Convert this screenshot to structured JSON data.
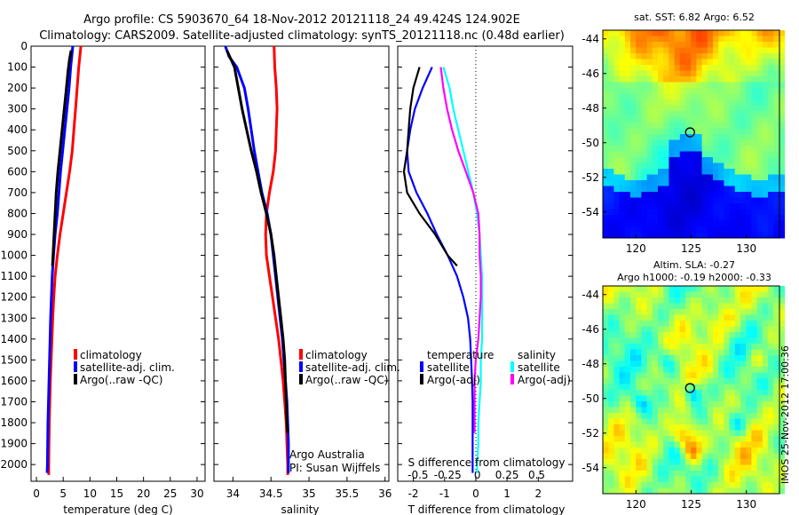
{
  "header": {
    "line1": "Argo profile: CS 5903670_64 18-Nov-2012 20121118_24 49.424S 124.902E",
    "line2": "Climatology: CARS2009. Satellite-adjusted climatology: synTS_20121118.nc (0.48d earlier)"
  },
  "colors": {
    "climatology": "#ff0000",
    "satellite": "#0000ff",
    "argo": "#000000",
    "salinity_satellite": "#00ffff",
    "salinity_argo": "#ff00ff"
  },
  "chart_data": [
    {
      "id": "temperature",
      "type": "line",
      "xlabel": "temperature (deg C)",
      "ylabel": "",
      "xlim": [
        -1,
        31.5
      ],
      "ylim": [
        2080,
        0
      ],
      "xticks": [
        0,
        5,
        10,
        15,
        20,
        25,
        30
      ],
      "yticks": [
        0,
        100,
        200,
        300,
        400,
        500,
        600,
        700,
        800,
        900,
        1000,
        1100,
        1200,
        1300,
        1400,
        1500,
        1600,
        1700,
        1800,
        1900,
        2000
      ],
      "legend": [
        "climatology",
        "satellite-adj. clim.",
        "Argo(..raw -QC)"
      ],
      "series": [
        {
          "name": "climatology",
          "color": "#ff0000",
          "points": [
            [
              8.3,
              0
            ],
            [
              8.1,
              50
            ],
            [
              7.9,
              100
            ],
            [
              7.6,
              200
            ],
            [
              7.3,
              300
            ],
            [
              7.0,
              400
            ],
            [
              6.7,
              500
            ],
            [
              6.2,
              600
            ],
            [
              5.6,
              700
            ],
            [
              5.0,
              800
            ],
            [
              4.4,
              900
            ],
            [
              3.9,
              1000
            ],
            [
              3.5,
              1100
            ],
            [
              3.25,
              1200
            ],
            [
              3.05,
              1300
            ],
            [
              2.9,
              1400
            ],
            [
              2.75,
              1500
            ],
            [
              2.6,
              1600
            ],
            [
              2.5,
              1700
            ],
            [
              2.4,
              1800
            ],
            [
              2.35,
              1900
            ],
            [
              2.3,
              2000
            ],
            [
              2.3,
              2050
            ]
          ]
        },
        {
          "name": "satellite-adj. clim.",
          "color": "#0000ff",
          "points": [
            [
              6.8,
              0
            ],
            [
              6.6,
              50
            ],
            [
              6.4,
              100
            ],
            [
              6.1,
              200
            ],
            [
              5.7,
              300
            ],
            [
              5.3,
              400
            ],
            [
              4.9,
              500
            ],
            [
              4.5,
              600
            ],
            [
              4.2,
              700
            ],
            [
              3.9,
              800
            ],
            [
              3.5,
              900
            ],
            [
              3.2,
              1000
            ],
            [
              2.95,
              1100
            ],
            [
              2.8,
              1200
            ],
            [
              2.65,
              1300
            ],
            [
              2.55,
              1400
            ],
            [
              2.45,
              1500
            ],
            [
              2.35,
              1600
            ],
            [
              2.25,
              1700
            ],
            [
              2.15,
              1800
            ],
            [
              2.1,
              1900
            ],
            [
              2.05,
              2000
            ],
            [
              2.0,
              2040
            ]
          ]
        },
        {
          "name": "Argo(..raw -QC)",
          "color": "#000000",
          "points": [
            [
              6.5,
              20
            ],
            [
              6.2,
              60
            ],
            [
              5.9,
              120
            ],
            [
              5.6,
              200
            ],
            [
              5.2,
              300
            ],
            [
              4.8,
              400
            ],
            [
              4.4,
              500
            ],
            [
              4.0,
              600
            ],
            [
              3.7,
              700
            ],
            [
              3.5,
              800
            ],
            [
              3.3,
              900
            ],
            [
              3.1,
              1000
            ],
            [
              3.0,
              1050
            ]
          ]
        }
      ]
    },
    {
      "id": "salinity",
      "type": "line",
      "xlabel": "salinity",
      "ylabel": "",
      "xlim": [
        33.75,
        36.05
      ],
      "ylim": [
        2080,
        0
      ],
      "xticks": [
        34,
        34.5,
        35,
        35.5,
        36
      ],
      "legend": [
        "climatology",
        "satellite-adj. clim.",
        "Argo(..raw -QC)"
      ],
      "annotation": [
        "Argo Australia",
        "PI: Susan Wijffels"
      ],
      "series": [
        {
          "name": "climatology",
          "color": "#ff0000",
          "points": [
            [
              34.54,
              0
            ],
            [
              34.55,
              100
            ],
            [
              34.57,
              200
            ],
            [
              34.58,
              300
            ],
            [
              34.57,
              400
            ],
            [
              34.56,
              500
            ],
            [
              34.53,
              600
            ],
            [
              34.48,
              700
            ],
            [
              34.44,
              800
            ],
            [
              34.43,
              900
            ],
            [
              34.44,
              1000
            ],
            [
              34.48,
              1100
            ],
            [
              34.52,
              1200
            ],
            [
              34.56,
              1300
            ],
            [
              34.6,
              1400
            ],
            [
              34.63,
              1500
            ],
            [
              34.66,
              1600
            ],
            [
              34.68,
              1700
            ],
            [
              34.7,
              1800
            ],
            [
              34.71,
              1900
            ],
            [
              34.72,
              2000
            ],
            [
              34.72,
              2050
            ]
          ]
        },
        {
          "name": "satellite-adj. clim.",
          "color": "#0000ff",
          "points": [
            [
              33.9,
              0
            ],
            [
              33.95,
              50
            ],
            [
              34.05,
              100
            ],
            [
              34.15,
              200
            ],
            [
              34.2,
              300
            ],
            [
              34.24,
              400
            ],
            [
              34.28,
              500
            ],
            [
              34.33,
              600
            ],
            [
              34.38,
              700
            ],
            [
              34.45,
              800
            ],
            [
              34.5,
              900
            ],
            [
              34.53,
              1000
            ],
            [
              34.56,
              1100
            ],
            [
              34.59,
              1200
            ],
            [
              34.62,
              1300
            ],
            [
              34.65,
              1400
            ],
            [
              34.67,
              1500
            ],
            [
              34.69,
              1600
            ],
            [
              34.71,
              1700
            ],
            [
              34.72,
              1800
            ],
            [
              34.73,
              1900
            ],
            [
              34.73,
              2000
            ],
            [
              34.73,
              2040
            ]
          ]
        },
        {
          "name": "Argo(..raw -QC)",
          "color": "#000000",
          "points": [
            [
              33.92,
              20
            ],
            [
              33.97,
              60
            ],
            [
              34.02,
              100
            ],
            [
              34.07,
              200
            ],
            [
              34.12,
              300
            ],
            [
              34.18,
              400
            ],
            [
              34.24,
              500
            ],
            [
              34.31,
              600
            ],
            [
              34.37,
              700
            ],
            [
              34.44,
              800
            ],
            [
              34.5,
              900
            ],
            [
              34.54,
              1000
            ],
            [
              34.57,
              1100
            ],
            [
              34.6,
              1200
            ],
            [
              34.63,
              1300
            ],
            [
              34.66,
              1400
            ],
            [
              34.68,
              1500
            ],
            [
              34.69,
              1600
            ],
            [
              34.7,
              1700
            ],
            [
              34.71,
              1800
            ],
            [
              34.72,
              1850
            ]
          ]
        }
      ]
    },
    {
      "id": "difference",
      "type": "line",
      "xlabel": "T difference from climatology",
      "xlabel_top": "S difference from climatology",
      "ylabel": "",
      "xlim": [
        -2.5,
        3.1
      ],
      "ylim": [
        2080,
        0
      ],
      "xticks": [
        -2,
        -1,
        0,
        1,
        2
      ],
      "xticks_top": [
        "-0.5",
        "-0.25",
        "0",
        "0.25",
        "0.5"
      ],
      "legend_headers": [
        "temperature",
        "salinity"
      ],
      "legend": [
        "satellite",
        "Argo(-adj)",
        "satellite",
        "Argo(-adj)"
      ],
      "series": [
        {
          "name": "temperature satellite",
          "color": "#0000ff",
          "points": [
            [
              -1.4,
              100
            ],
            [
              -1.7,
              200
            ],
            [
              -1.95,
              300
            ],
            [
              -2.1,
              400
            ],
            [
              -2.2,
              500
            ],
            [
              -2.15,
              600
            ],
            [
              -1.9,
              700
            ],
            [
              -1.55,
              800
            ],
            [
              -1.25,
              900
            ],
            [
              -0.9,
              1000
            ],
            [
              -0.6,
              1100
            ],
            [
              -0.4,
              1200
            ],
            [
              -0.25,
              1300
            ],
            [
              -0.18,
              1400
            ],
            [
              -0.15,
              1500
            ],
            [
              -0.12,
              1600
            ],
            [
              -0.1,
              1700
            ],
            [
              -0.1,
              1800
            ],
            [
              -0.1,
              1900
            ],
            [
              -0.1,
              2000
            ],
            [
              -0.1,
              2040
            ]
          ]
        },
        {
          "name": "temperature Argo(-adj)",
          "color": "#000000",
          "points": [
            [
              -1.8,
              100
            ],
            [
              -2.0,
              200
            ],
            [
              -2.1,
              300
            ],
            [
              -2.15,
              400
            ],
            [
              -2.2,
              500
            ],
            [
              -2.3,
              600
            ],
            [
              -2.2,
              700
            ],
            [
              -1.8,
              800
            ],
            [
              -1.3,
              900
            ],
            [
              -0.9,
              1000
            ],
            [
              -0.6,
              1050
            ]
          ]
        },
        {
          "name": "salinity satellite",
          "color": "#00ffff",
          "points": [
            [
              -0.26,
              100
            ],
            [
              -0.21,
              200
            ],
            [
              -0.18,
              300
            ],
            [
              -0.14,
              400
            ],
            [
              -0.1,
              500
            ],
            [
              -0.06,
              600
            ],
            [
              -0.02,
              700
            ],
            [
              0.01,
              800
            ],
            [
              0.03,
              900
            ],
            [
              0.04,
              1000
            ],
            [
              0.05,
              1100
            ],
            [
              0.05,
              1200
            ],
            [
              0.05,
              1300
            ],
            [
              0.05,
              1400
            ],
            [
              0.04,
              1500
            ],
            [
              0.04,
              1600
            ],
            [
              0.03,
              1700
            ],
            [
              0.02,
              1800
            ],
            [
              0.02,
              1900
            ],
            [
              0.01,
              2000
            ],
            [
              0.01,
              2040
            ]
          ]
        },
        {
          "name": "salinity Argo(-adj)",
          "color": "#ff00ff",
          "points": [
            [
              -0.28,
              100
            ],
            [
              -0.26,
              200
            ],
            [
              -0.23,
              300
            ],
            [
              -0.19,
              400
            ],
            [
              -0.14,
              500
            ],
            [
              -0.08,
              600
            ],
            [
              -0.02,
              700
            ],
            [
              0.02,
              800
            ],
            [
              0.03,
              900
            ],
            [
              0.03,
              1000
            ],
            [
              0.04,
              1100
            ],
            [
              0.04,
              1200
            ],
            [
              0.03,
              1300
            ],
            [
              0.02,
              1400
            ],
            [
              0.0,
              1500
            ],
            [
              -0.01,
              1600
            ],
            [
              -0.01,
              1700
            ],
            [
              -0.01,
              1800
            ],
            [
              -0.01,
              1850
            ]
          ]
        }
      ]
    },
    {
      "id": "sst-map",
      "type": "heatmap",
      "title": "sat. SST: 6.82  Argo: 6.52",
      "xlim": [
        117,
        133
      ],
      "ylim": [
        -55.5,
        -43.5
      ],
      "xticks": [
        120,
        125,
        130
      ],
      "yticks": [
        -44,
        -46,
        -48,
        -50,
        -52,
        -54
      ],
      "marker": [
        124.9,
        -49.4
      ]
    },
    {
      "id": "sla-map",
      "type": "heatmap",
      "title_line1": "Altim. SLA: -0.27",
      "title_line2": "Argo h1000: -0.19  h2000: -0.33",
      "xlim": [
        117,
        133
      ],
      "ylim": [
        -55.5,
        -43.5
      ],
      "xticks": [
        120,
        125,
        130
      ],
      "yticks": [
        -44,
        -46,
        -48,
        -50,
        -52,
        -54
      ],
      "marker": [
        124.9,
        -49.4
      ]
    }
  ],
  "footer_vertical": "IMOS 25-Nov-2012 17:00:36"
}
